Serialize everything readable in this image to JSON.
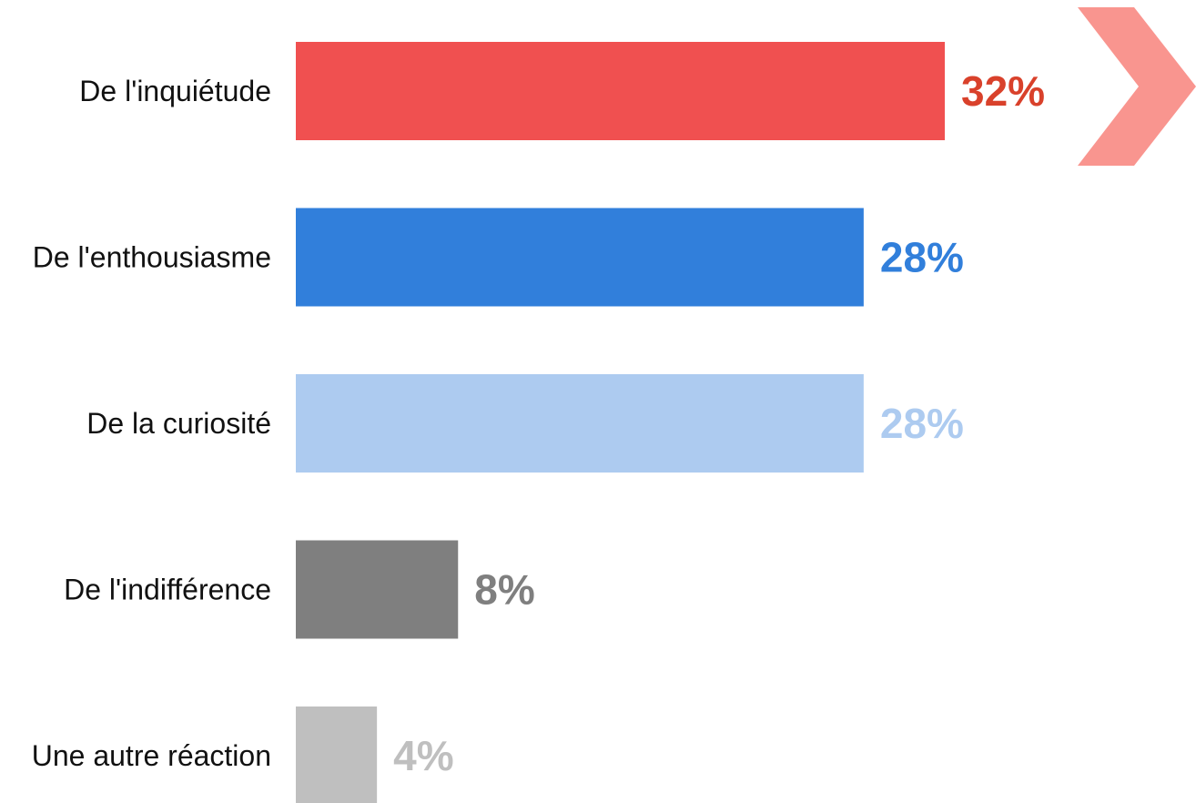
{
  "chart_data": {
    "type": "bar",
    "orientation": "horizontal",
    "categories": [
      "De l'inquiétude",
      "De l'enthousiasme",
      "De la curiosité",
      "De l'indifférence",
      "Une autre réaction"
    ],
    "values": [
      32,
      28,
      28,
      8,
      4
    ],
    "value_labels": [
      "32%",
      "28%",
      "28%",
      "8%",
      "4%"
    ],
    "bar_colors": [
      "#f05050",
      "#317fdb",
      "#adcbf0",
      "#7f7f7f",
      "#bfbfbf"
    ],
    "label_colors": [
      "#d9412b",
      "#317fdb",
      "#adcbf0",
      "#7f7f7f",
      "#bfbfbf"
    ],
    "xlim": [
      0,
      32
    ],
    "grid": false,
    "legend": "none",
    "decoration": {
      "name": "chevron-arrow-icon",
      "color": "#f9958f"
    }
  }
}
